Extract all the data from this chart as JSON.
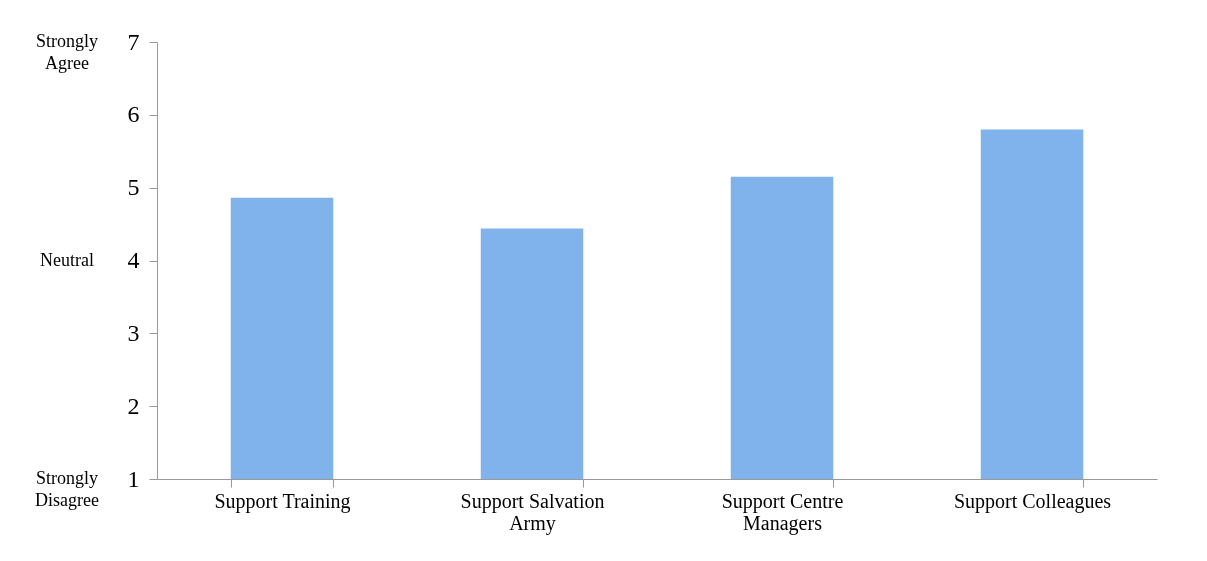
{
  "chart_data": {
    "type": "bar",
    "categories": [
      "Support Training",
      "Support Salvation Army",
      "Support Centre Managers",
      "Support Colleagues"
    ],
    "values": [
      4.86,
      4.44,
      5.15,
      5.8
    ],
    "color": "#80b2ec",
    "ylim": [
      1,
      7
    ],
    "yticks": [
      1,
      2,
      3,
      4,
      5,
      6,
      7
    ],
    "annotations": [
      "Strongly Agree",
      "Neutral",
      "Strongly Disagree"
    ],
    "grid": false
  }
}
